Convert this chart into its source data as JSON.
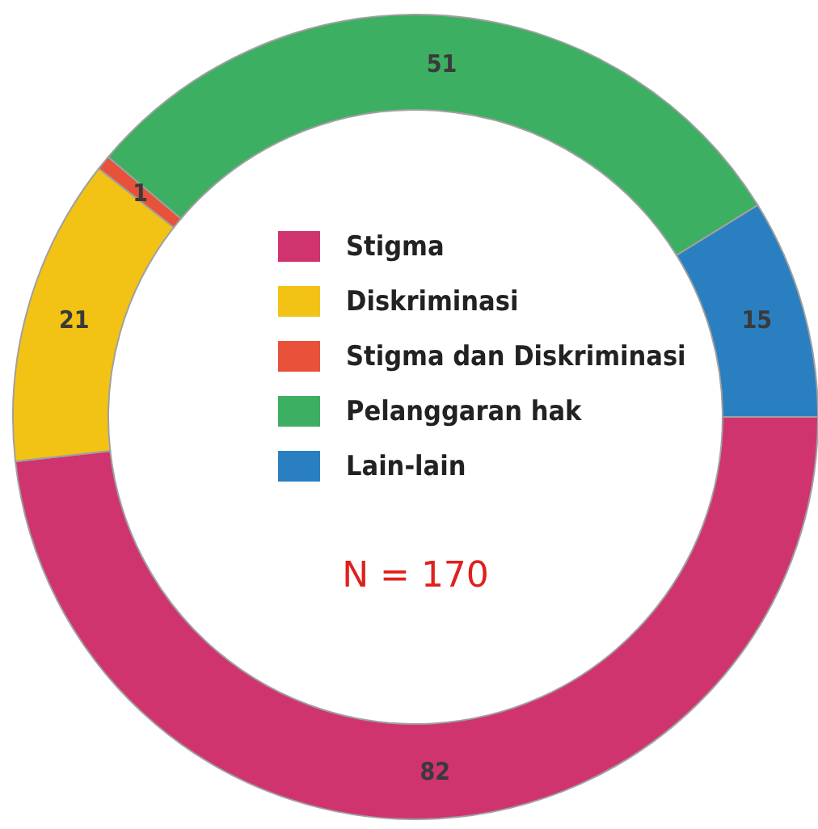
{
  "chart_data": {
    "type": "donut",
    "categories": [
      "Stigma",
      "Diskriminasi",
      "Stigma dan Diskriminasi",
      "Pelanggaran hak",
      "Lain-lain"
    ],
    "values": [
      82,
      21,
      1,
      51,
      15
    ],
    "colors": [
      "#d0346f",
      "#f2c314",
      "#e8513a",
      "#3daf62",
      "#2a7fc0"
    ],
    "data_labels": true,
    "legend": "center",
    "annotations": [
      "N = 170"
    ]
  }
}
